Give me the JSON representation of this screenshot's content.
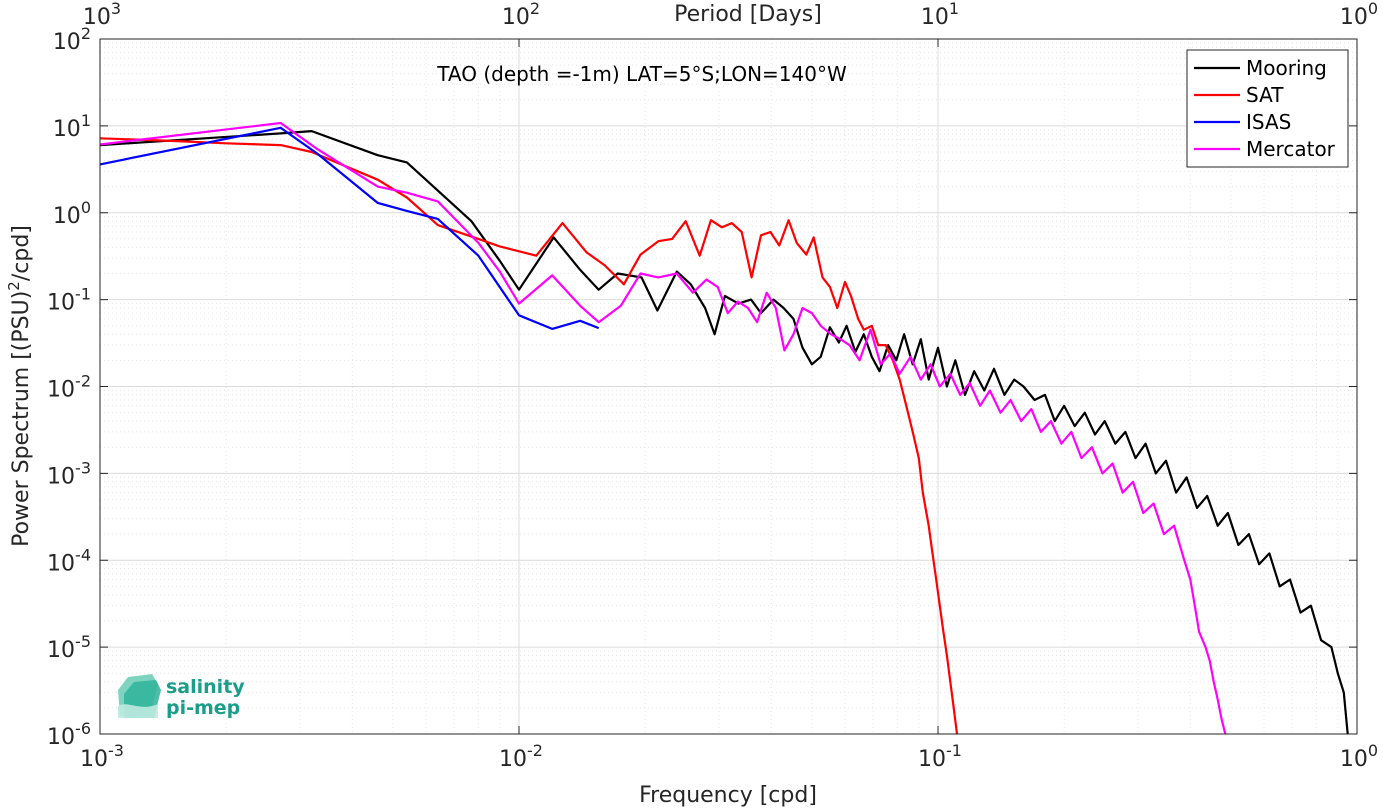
{
  "chart_data": {
    "type": "line",
    "title": "TAO (depth =-1m) LAT=5°S;LON=140°W",
    "xlabel": "Frequency [cpd]",
    "ylabel": "Power Spectrum [(PSU)^2/cpd]",
    "x2label": "Period [Days]",
    "xscale": "log",
    "yscale": "log",
    "xlim": [
      0.001,
      1
    ],
    "ylim": [
      1e-06,
      100
    ],
    "x_ticks": [
      {
        "base": "10",
        "exp": "-3"
      },
      {
        "base": "10",
        "exp": "-2"
      },
      {
        "base": "10",
        "exp": "-1"
      },
      {
        "base": "10",
        "exp": "0"
      }
    ],
    "x2_ticks": [
      {
        "base": "10",
        "exp": "3"
      },
      {
        "base": "10",
        "exp": "2"
      },
      {
        "base": "10",
        "exp": "1"
      },
      {
        "base": "10",
        "exp": "0"
      }
    ],
    "y_ticks": [
      {
        "base": "10",
        "exp": "-6"
      },
      {
        "base": "10",
        "exp": "-5"
      },
      {
        "base": "10",
        "exp": "-4"
      },
      {
        "base": "10",
        "exp": "-3"
      },
      {
        "base": "10",
        "exp": "-2"
      },
      {
        "base": "10",
        "exp": "-1"
      },
      {
        "base": "10",
        "exp": "0"
      },
      {
        "base": "10",
        "exp": "1"
      },
      {
        "base": "10",
        "exp": "2"
      }
    ],
    "grid": true,
    "legend_position": "top-right",
    "series": [
      {
        "name": "Mooring",
        "color": "#000000",
        "points": [
          [
            0.001,
            6
          ],
          [
            0.0027,
            8.2
          ],
          [
            0.0032,
            8.7
          ],
          [
            0.0046,
            4.6
          ],
          [
            0.0054,
            3.8
          ],
          [
            0.0064,
            1.8
          ],
          [
            0.0077,
            0.8
          ],
          [
            0.009,
            0.28
          ],
          [
            0.01,
            0.13
          ],
          [
            0.0121,
            0.52
          ],
          [
            0.014,
            0.22
          ],
          [
            0.0155,
            0.13
          ],
          [
            0.0172,
            0.2
          ],
          [
            0.0196,
            0.18
          ],
          [
            0.0214,
            0.075
          ],
          [
            0.0238,
            0.21
          ],
          [
            0.0257,
            0.15
          ],
          [
            0.0278,
            0.08
          ],
          [
            0.0293,
            0.04
          ],
          [
            0.031,
            0.11
          ],
          [
            0.0334,
            0.09
          ],
          [
            0.0358,
            0.1
          ],
          [
            0.0378,
            0.07
          ],
          [
            0.0405,
            0.1
          ],
          [
            0.0428,
            0.08
          ],
          [
            0.0452,
            0.06
          ],
          [
            0.0475,
            0.028
          ],
          [
            0.05,
            0.018
          ],
          [
            0.0525,
            0.022
          ],
          [
            0.0552,
            0.048
          ],
          [
            0.058,
            0.032
          ],
          [
            0.0605,
            0.05
          ],
          [
            0.0635,
            0.025
          ],
          [
            0.0665,
            0.04
          ],
          [
            0.0695,
            0.022
          ],
          [
            0.0725,
            0.015
          ],
          [
            0.076,
            0.03
          ],
          [
            0.0795,
            0.02
          ],
          [
            0.083,
            0.04
          ],
          [
            0.087,
            0.018
          ],
          [
            0.091,
            0.035
          ],
          [
            0.095,
            0.012
          ],
          [
            0.1,
            0.028
          ],
          [
            0.105,
            0.01
          ],
          [
            0.11,
            0.02
          ],
          [
            0.116,
            0.008
          ],
          [
            0.122,
            0.015
          ],
          [
            0.129,
            0.009
          ],
          [
            0.136,
            0.016
          ],
          [
            0.144,
            0.008
          ],
          [
            0.152,
            0.012
          ],
          [
            0.16,
            0.01
          ],
          [
            0.17,
            0.007
          ],
          [
            0.18,
            0.008
          ],
          [
            0.19,
            0.004
          ],
          [
            0.2,
            0.006
          ],
          [
            0.212,
            0.0035
          ],
          [
            0.224,
            0.005
          ],
          [
            0.237,
            0.0028
          ],
          [
            0.25,
            0.004
          ],
          [
            0.265,
            0.0022
          ],
          [
            0.28,
            0.003
          ],
          [
            0.296,
            0.0015
          ],
          [
            0.313,
            0.0022
          ],
          [
            0.331,
            0.001
          ],
          [
            0.35,
            0.0014
          ],
          [
            0.37,
            0.0006
          ],
          [
            0.392,
            0.0009
          ],
          [
            0.415,
            0.0004
          ],
          [
            0.439,
            0.00055
          ],
          [
            0.465,
            0.00025
          ],
          [
            0.492,
            0.00035
          ],
          [
            0.521,
            0.00015
          ],
          [
            0.552,
            0.0002
          ],
          [
            0.584,
            9e-05
          ],
          [
            0.618,
            0.00012
          ],
          [
            0.654,
            5e-05
          ],
          [
            0.692,
            6e-05
          ],
          [
            0.733,
            2.5e-05
          ],
          [
            0.776,
            3e-05
          ],
          [
            0.821,
            1.2e-05
          ],
          [
            0.869,
            1e-05
          ],
          [
            0.9,
            5e-06
          ],
          [
            0.93,
            3e-06
          ],
          [
            0.95,
            1e-06
          ]
        ]
      },
      {
        "name": "SAT",
        "color": "#ff0000",
        "points": [
          [
            0.001,
            7.2
          ],
          [
            0.0015,
            6.7
          ],
          [
            0.002,
            6.3
          ],
          [
            0.0027,
            6.0
          ],
          [
            0.0032,
            5.0
          ],
          [
            0.0046,
            2.4
          ],
          [
            0.0054,
            1.5
          ],
          [
            0.0064,
            0.72
          ],
          [
            0.008,
            0.5
          ],
          [
            0.009,
            0.41
          ],
          [
            0.011,
            0.32
          ],
          [
            0.0127,
            0.76
          ],
          [
            0.0145,
            0.35
          ],
          [
            0.016,
            0.25
          ],
          [
            0.0178,
            0.15
          ],
          [
            0.0195,
            0.33
          ],
          [
            0.0215,
            0.47
          ],
          [
            0.0232,
            0.5
          ],
          [
            0.025,
            0.8
          ],
          [
            0.027,
            0.32
          ],
          [
            0.0287,
            0.82
          ],
          [
            0.0305,
            0.68
          ],
          [
            0.0322,
            0.76
          ],
          [
            0.034,
            0.6
          ],
          [
            0.0359,
            0.18
          ],
          [
            0.0378,
            0.55
          ],
          [
            0.0398,
            0.6
          ],
          [
            0.0418,
            0.42
          ],
          [
            0.044,
            0.82
          ],
          [
            0.046,
            0.45
          ],
          [
            0.0485,
            0.33
          ],
          [
            0.0505,
            0.52
          ],
          [
            0.053,
            0.18
          ],
          [
            0.0552,
            0.14
          ],
          [
            0.0575,
            0.08
          ],
          [
            0.06,
            0.16
          ],
          [
            0.062,
            0.11
          ],
          [
            0.0645,
            0.06
          ],
          [
            0.0665,
            0.045
          ],
          [
            0.0695,
            0.05
          ],
          [
            0.072,
            0.03
          ],
          [
            0.075,
            0.03
          ],
          [
            0.078,
            0.02
          ],
          [
            0.081,
            0.012
          ],
          [
            0.084,
            0.006
          ],
          [
            0.087,
            0.003
          ],
          [
            0.09,
            0.0015
          ],
          [
            0.092,
            0.0006
          ],
          [
            0.095,
            0.00025
          ],
          [
            0.097,
            0.00012
          ],
          [
            0.099,
            6e-05
          ],
          [
            0.101,
            3e-05
          ],
          [
            0.103,
            1.5e-05
          ],
          [
            0.105,
            8e-06
          ],
          [
            0.107,
            4e-06
          ],
          [
            0.109,
            2e-06
          ],
          [
            0.111,
            1e-06
          ]
        ]
      },
      {
        "name": "ISAS",
        "color": "#0000ff",
        "points": [
          [
            0.001,
            3.6
          ],
          [
            0.0027,
            9.5
          ],
          [
            0.0033,
            4.8
          ],
          [
            0.0046,
            1.3
          ],
          [
            0.0054,
            1.05
          ],
          [
            0.0064,
            0.85
          ],
          [
            0.008,
            0.32
          ],
          [
            0.01,
            0.066
          ],
          [
            0.012,
            0.046
          ],
          [
            0.014,
            0.057
          ],
          [
            0.0155,
            0.047
          ]
        ]
      },
      {
        "name": "Mercator",
        "color": "#ff00ff",
        "points": [
          [
            0.001,
            6.1
          ],
          [
            0.0027,
            10.8
          ],
          [
            0.0033,
            5.4
          ],
          [
            0.0046,
            2.0
          ],
          [
            0.0054,
            1.7
          ],
          [
            0.0064,
            1.35
          ],
          [
            0.008,
            0.45
          ],
          [
            0.009,
            0.21
          ],
          [
            0.01,
            0.09
          ],
          [
            0.012,
            0.19
          ],
          [
            0.014,
            0.085
          ],
          [
            0.0155,
            0.055
          ],
          [
            0.0175,
            0.085
          ],
          [
            0.0195,
            0.2
          ],
          [
            0.0215,
            0.18
          ],
          [
            0.0238,
            0.2
          ],
          [
            0.026,
            0.12
          ],
          [
            0.028,
            0.17
          ],
          [
            0.0298,
            0.14
          ],
          [
            0.0315,
            0.07
          ],
          [
            0.0333,
            0.095
          ],
          [
            0.0352,
            0.08
          ],
          [
            0.037,
            0.055
          ],
          [
            0.039,
            0.12
          ],
          [
            0.041,
            0.08
          ],
          [
            0.043,
            0.026
          ],
          [
            0.0452,
            0.04
          ],
          [
            0.0475,
            0.08
          ],
          [
            0.05,
            0.07
          ],
          [
            0.0525,
            0.05
          ],
          [
            0.0555,
            0.04
          ],
          [
            0.0585,
            0.035
          ],
          [
            0.0615,
            0.03
          ],
          [
            0.065,
            0.02
          ],
          [
            0.069,
            0.045
          ],
          [
            0.073,
            0.018
          ],
          [
            0.077,
            0.024
          ],
          [
            0.081,
            0.014
          ],
          [
            0.086,
            0.022
          ],
          [
            0.091,
            0.012
          ],
          [
            0.096,
            0.018
          ],
          [
            0.101,
            0.01
          ],
          [
            0.107,
            0.014
          ],
          [
            0.113,
            0.008
          ],
          [
            0.119,
            0.011
          ],
          [
            0.126,
            0.006
          ],
          [
            0.133,
            0.009
          ],
          [
            0.141,
            0.005
          ],
          [
            0.149,
            0.007
          ],
          [
            0.158,
            0.004
          ],
          [
            0.167,
            0.0055
          ],
          [
            0.176,
            0.003
          ],
          [
            0.186,
            0.004
          ],
          [
            0.197,
            0.0022
          ],
          [
            0.208,
            0.003
          ],
          [
            0.22,
            0.0015
          ],
          [
            0.233,
            0.002
          ],
          [
            0.247,
            0.001
          ],
          [
            0.261,
            0.0013
          ],
          [
            0.276,
            0.0006
          ],
          [
            0.292,
            0.0008
          ],
          [
            0.309,
            0.00035
          ],
          [
            0.327,
            0.00045
          ],
          [
            0.346,
            0.0002
          ],
          [
            0.366,
            0.00025
          ],
          [
            0.387,
            0.0001
          ],
          [
            0.4,
            6e-05
          ],
          [
            0.41,
            3e-05
          ],
          [
            0.42,
            1.5e-05
          ],
          [
            0.435,
            1e-05
          ],
          [
            0.445,
            7e-06
          ],
          [
            0.455,
            4e-06
          ],
          [
            0.465,
            2.5e-06
          ],
          [
            0.475,
            1.5e-06
          ],
          [
            0.485,
            1e-06
          ]
        ]
      }
    ]
  },
  "logo": {
    "line1": "salinity",
    "line2": "pi-mep"
  }
}
